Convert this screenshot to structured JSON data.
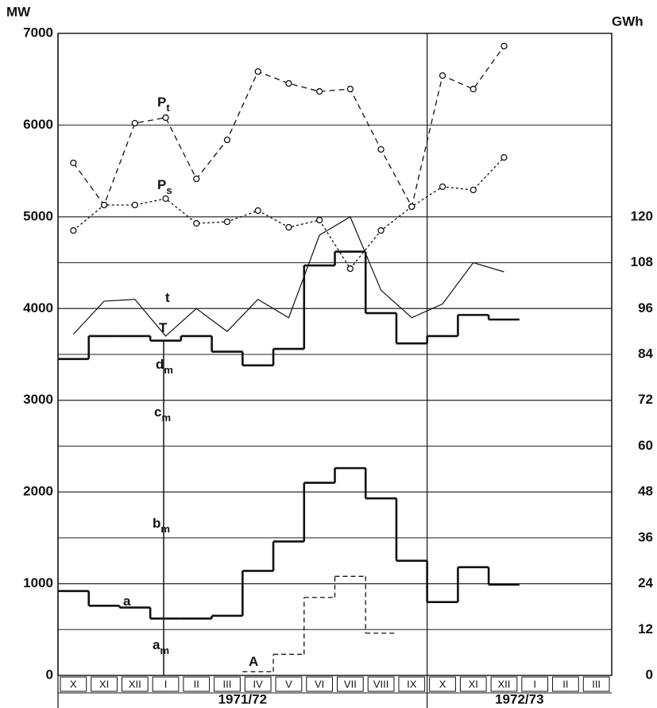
{
  "chart_data": {
    "type": "line",
    "y_label": "MW",
    "y2_label": "GWh",
    "categories": [
      "X",
      "XI",
      "XII",
      "I",
      "II",
      "III",
      "IV",
      "V",
      "VI",
      "VII",
      "VIII",
      "IX",
      "X",
      "XI",
      "XII",
      "I",
      "II",
      "III"
    ],
    "periods": [
      {
        "label": "1971/72",
        "months": 12
      },
      {
        "label": "1972/73",
        "months": 6
      }
    ],
    "ylim": [
      0,
      7000
    ],
    "yticks": [
      0,
      1000,
      2000,
      3000,
      4000,
      5000,
      6000,
      7000
    ],
    "y2lim": [
      0,
      168
    ],
    "y2ticks": [
      0,
      12,
      24,
      36,
      48,
      60,
      72,
      84,
      96,
      108,
      120
    ],
    "grid": true,
    "series": [
      {
        "name": "P",
        "sub": "t",
        "style": "dashed-circles",
        "color": "#111",
        "values": [
          5588,
          5129,
          6021,
          6081,
          5414,
          5839,
          6584,
          6454,
          6367,
          6393,
          5735,
          5111,
          6540,
          6393,
          6861,
          null,
          null,
          null
        ]
      },
      {
        "name": "P",
        "sub": "s",
        "style": "dotted-circles",
        "color": "#111",
        "values": [
          4851,
          5129,
          5129,
          5198,
          4929,
          4946,
          5068,
          4886,
          4964,
          4435,
          4851,
          5111,
          5328,
          5293,
          5648,
          null,
          null,
          null
        ]
      },
      {
        "name": "t",
        "style": "thin",
        "color": "#111",
        "values": [
          3720,
          4080,
          4100,
          3700,
          4000,
          3750,
          4100,
          3900,
          4800,
          5000,
          4200,
          3900,
          4050,
          4500,
          4400,
          null,
          null,
          null
        ]
      },
      {
        "name": "T",
        "style": "step-thick",
        "color": "#111",
        "values": [
          3450,
          3700,
          3700,
          3650,
          3700,
          3530,
          3380,
          3560,
          4470,
          4620,
          3950,
          3620,
          3700,
          3930,
          3880,
          null,
          null,
          null
        ]
      },
      {
        "name": "a",
        "style": "step-thick",
        "color": "#111",
        "values": [
          920,
          760,
          740,
          620,
          620,
          650,
          1140,
          1460,
          2100,
          2260,
          1930,
          1250,
          800,
          1180,
          990,
          null,
          null,
          null
        ]
      },
      {
        "name": "A",
        "style": "step-dashed",
        "color": "#111",
        "values": [
          null,
          null,
          null,
          null,
          null,
          null,
          40,
          230,
          850,
          1080,
          460,
          null,
          null,
          null,
          null,
          null,
          null,
          null
        ]
      }
    ],
    "annotations": [
      {
        "text": "d",
        "sub": "m"
      },
      {
        "text": "c",
        "sub": "m"
      },
      {
        "text": "b",
        "sub": "m"
      },
      {
        "text": "a",
        "sub": "m"
      }
    ]
  }
}
